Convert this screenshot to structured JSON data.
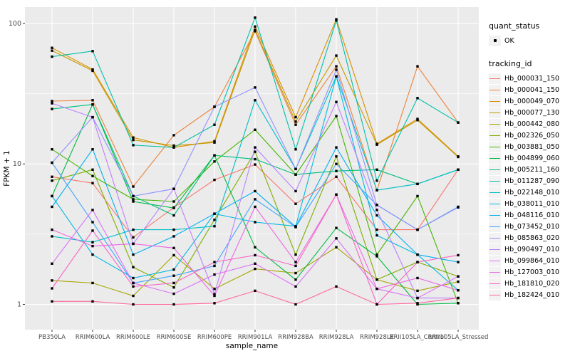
{
  "chart_data": {
    "type": "line",
    "title": "",
    "xlabel": "sample_name",
    "ylabel": "FPKM + 1",
    "y_scale": "log10",
    "y_ticks": [
      1,
      10,
      100
    ],
    "ylim_log": [
      0.96,
      120
    ],
    "grid": true,
    "panel_color": "#EBEBEB",
    "grid_color": "#FFFFFF",
    "point_color": "#000000",
    "legend_position": "right",
    "categories": [
      "PB350LA",
      "RRIM600LA",
      "RRIM600LE",
      "RRIM600SE",
      "RRIM600PE",
      "RRIM901LA",
      "RRIM928BA",
      "RRIM928LA",
      "RRIM928LE",
      "RRII105LA_Control",
      "RRII105LA_Stressed"
    ],
    "series": [
      {
        "name": "Hb_000031_150",
        "color": "#F8766D",
        "values": [
          8.1,
          7.3,
          3.0,
          4.9,
          7.7,
          9.9,
          5.2,
          8.1,
          3.4,
          3.4,
          9.1
        ]
      },
      {
        "name": "Hb_000041_150",
        "color": "#EC8239",
        "values": [
          28,
          28.4,
          6.9,
          16,
          25.5,
          88,
          19,
          49.5,
          6.5,
          49.5,
          19.7
        ]
      },
      {
        "name": "Hb_000049_070",
        "color": "#DB8E00",
        "values": [
          67,
          47,
          15.4,
          13.1,
          14.5,
          95,
          21.5,
          107,
          13.9,
          20.9,
          11.3
        ]
      },
      {
        "name": "Hb_000077_130",
        "color": "#C39B00",
        "values": [
          64,
          46,
          14.8,
          13.5,
          14.2,
          90,
          20,
          59,
          13.7,
          20.5,
          11.2
        ]
      },
      {
        "name": "Hb_000442_080",
        "color": "#A5A500",
        "values": [
          1.48,
          1.42,
          1.15,
          2.24,
          1.29,
          1.79,
          1.67,
          2.55,
          1.5,
          1.25,
          1.45
        ]
      },
      {
        "name": "Hb_002326_050",
        "color": "#7FAD00",
        "values": [
          7.6,
          9.1,
          1.84,
          1.32,
          4.0,
          12.2,
          2.26,
          11.3,
          1.5,
          2.0,
          1.58
        ]
      },
      {
        "name": "Hb_003881_050",
        "color": "#45B500",
        "values": [
          12.7,
          8.2,
          5.6,
          5.4,
          10.4,
          17.5,
          8.4,
          21.9,
          2.26,
          5.9,
          1.02
        ]
      },
      {
        "name": "Hb_004899_060",
        "color": "#00BA42",
        "values": [
          5.9,
          26.5,
          5.4,
          4.85,
          11.5,
          2.55,
          1.5,
          3.5,
          2.2,
          1.0,
          1.02
        ]
      },
      {
        "name": "Hb_005211_160",
        "color": "#00BE7C",
        "values": [
          24.6,
          26.5,
          5.9,
          4.3,
          11.5,
          10.8,
          8.4,
          8.9,
          9.1,
          7.2,
          9.1
        ]
      },
      {
        "name": "Hb_011287_090",
        "color": "#00C0A8",
        "values": [
          58,
          63.5,
          13.6,
          13.1,
          19,
          110,
          12.7,
          105,
          7.6,
          29.4,
          19.7
        ]
      },
      {
        "name": "Hb_022148_010",
        "color": "#00BFC9",
        "values": [
          3.05,
          2.77,
          3.4,
          3.4,
          3.6,
          28.4,
          9.2,
          42,
          6.5,
          7.2,
          9.1
        ]
      },
      {
        "name": "Hb_038011_010",
        "color": "#00BAE2",
        "values": [
          5.9,
          2.26,
          1.54,
          1.77,
          4.42,
          3.85,
          3.6,
          42,
          3.1,
          2.26,
          1.26
        ]
      },
      {
        "name": "Hb_048116_010",
        "color": "#00B1F2",
        "values": [
          4.95,
          12.7,
          2.26,
          3.05,
          4.42,
          6.4,
          3.57,
          13.1,
          4.3,
          2.26,
          2.0
        ]
      },
      {
        "name": "Hb_073452_010",
        "color": "#42A3FF",
        "values": [
          10.2,
          3.85,
          1.42,
          1.6,
          1.88,
          5.6,
          3.55,
          10.0,
          5.1,
          3.4,
          4.95
        ]
      },
      {
        "name": "Hb_085863_020",
        "color": "#8F91FF",
        "values": [
          10.2,
          21.5,
          5.9,
          6.65,
          25.5,
          35,
          9.2,
          46.8,
          5.1,
          3.4,
          4.9
        ]
      },
      {
        "name": "Hb_090497_010",
        "color": "#BC81FF",
        "values": [
          27,
          21.5,
          2.7,
          6.65,
          1.18,
          13.1,
          6.4,
          27.6,
          4.7,
          1.11,
          1.11
        ]
      },
      {
        "name": "Hb_099864_010",
        "color": "#DC71F8",
        "values": [
          1.95,
          4.7,
          1.42,
          1.19,
          1.63,
          1.95,
          1.34,
          2.95,
          1.29,
          1.11,
          1.58
        ]
      },
      {
        "name": "Hb_127003_010",
        "color": "#ED68E4",
        "values": [
          3.4,
          2.6,
          2.7,
          2.52,
          1.15,
          4.95,
          2.0,
          6.05,
          1.29,
          1.54,
          1.26
        ]
      },
      {
        "name": "Hb_181810_020",
        "color": "#F865C7",
        "values": [
          1.3,
          3.35,
          1.34,
          1.42,
          2.0,
          2.24,
          1.88,
          6.05,
          1.0,
          2.0,
          2.24
        ]
      },
      {
        "name": "Hb_182424_010",
        "color": "#FF689E",
        "values": [
          1.05,
          1.05,
          1.0,
          1.0,
          1.02,
          1.25,
          1.0,
          1.34,
          1.0,
          1.02,
          1.11
        ]
      }
    ]
  },
  "legend": {
    "quant_title": "quant_status",
    "quant_items": [
      {
        "label": "OK"
      }
    ],
    "tracking_title": "tracking_id"
  }
}
